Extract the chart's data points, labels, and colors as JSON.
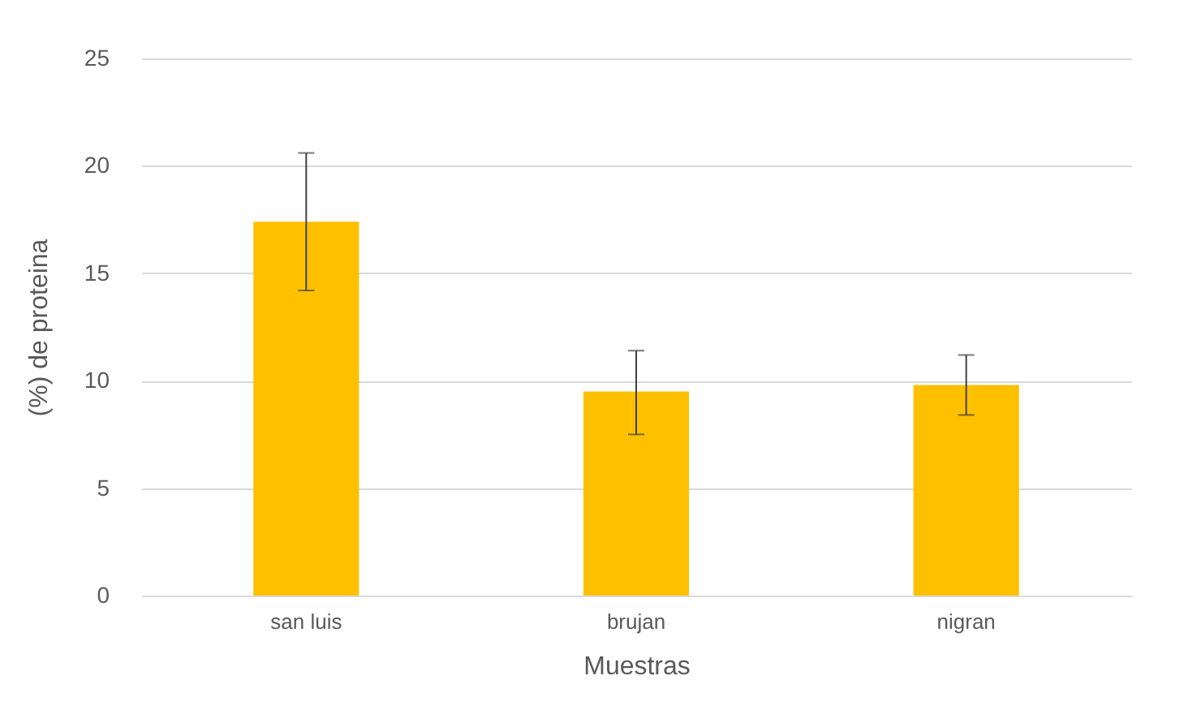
{
  "chart_data": {
    "type": "bar",
    "xlabel": "Muestras",
    "ylabel": "(%)  de proteina",
    "categories": [
      "san luis",
      "brujan",
      "nigran"
    ],
    "values": [
      17.4,
      9.5,
      9.8
    ],
    "errors": [
      [
        14.2,
        20.6
      ],
      [
        7.5,
        11.4
      ],
      [
        8.4,
        11.2
      ]
    ],
    "color": "#ffc000",
    "ylim": [
      0,
      25
    ],
    "yticks": [
      0,
      5,
      10,
      15,
      20,
      25
    ],
    "grid": "y"
  }
}
